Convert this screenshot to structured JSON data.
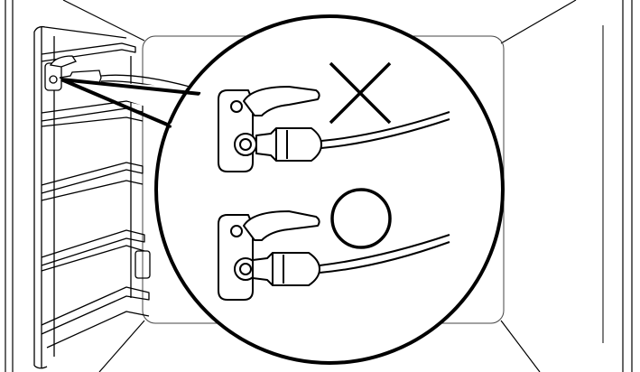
{
  "figure": {
    "subject": "oven-cavity-with-meat-probe-socket",
    "colors": {
      "line": "#000000",
      "background": "#ffffff",
      "panel_line": "#444444"
    },
    "callout": {
      "examples": [
        {
          "id": "incorrect",
          "symbol": "cross",
          "probe_plug_seated": false,
          "icon": "cross-mark-icon"
        },
        {
          "id": "correct",
          "symbol": "circle",
          "probe_plug_seated": true,
          "icon": "circle-mark-icon"
        }
      ]
    },
    "shelf_rails": {
      "count": 4
    }
  }
}
